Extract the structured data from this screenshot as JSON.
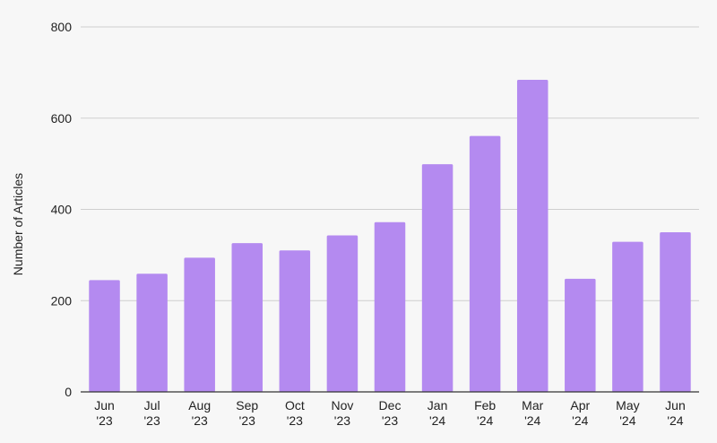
{
  "chart_data": {
    "type": "bar",
    "title": "",
    "xlabel": "",
    "ylabel": "Number of Articles",
    "ylim": [
      0,
      800
    ],
    "yticks": [
      0,
      200,
      400,
      600,
      800
    ],
    "grid": true,
    "legend": "none",
    "bar_color": "#b48af0",
    "categories": [
      [
        "Jun",
        "'23"
      ],
      [
        "Jul",
        "'23"
      ],
      [
        "Aug",
        "'23"
      ],
      [
        "Sep",
        "'23"
      ],
      [
        "Oct",
        "'23"
      ],
      [
        "Nov",
        "'23"
      ],
      [
        "Dec",
        "'23"
      ],
      [
        "Jan",
        "'24"
      ],
      [
        "Feb",
        "'24"
      ],
      [
        "Mar",
        "'24"
      ],
      [
        "Apr",
        "'24"
      ],
      [
        "May",
        "'24"
      ],
      [
        "Jun",
        "'24"
      ]
    ],
    "values": [
      245,
      259,
      294,
      326,
      310,
      343,
      372,
      499,
      561,
      684,
      248,
      329,
      350
    ]
  }
}
